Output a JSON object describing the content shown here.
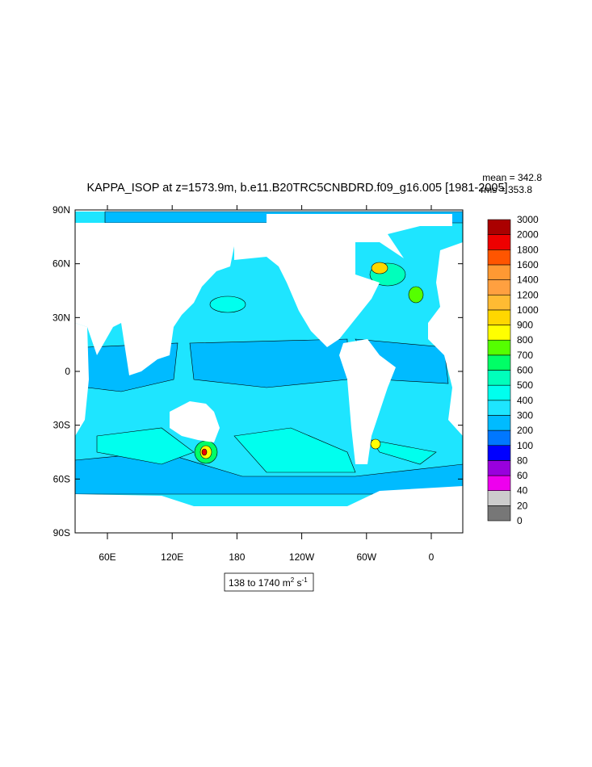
{
  "title": "KAPPA_ISOP at z=1573.9m, b.e11.B20TRC5CNBDRD.f09_g16.005 [1981-2005]",
  "stats": {
    "mean": "mean = 342.8",
    "rms": "rms = 353.8"
  },
  "map": {
    "lat_labels": [
      "90N",
      "60N",
      "30N",
      "0",
      "30S",
      "60S",
      "90S"
    ],
    "lon_labels": [
      "60E",
      "120E",
      "180",
      "120W",
      "60W",
      "0"
    ]
  },
  "colorbar": {
    "levels": [
      0,
      20,
      40,
      60,
      80,
      100,
      200,
      300,
      400,
      500,
      600,
      700,
      800,
      900,
      1000,
      1200,
      1400,
      1600,
      1800,
      2000,
      3000
    ],
    "colors": [
      "#777777",
      "#cccccc",
      "#ee00ee",
      "#9900dd",
      "#0000ff",
      "#0077ff",
      "#00bbff",
      "#1ee5ff",
      "#00ffee",
      "#00ffbb",
      "#00ff66",
      "#55ff00",
      "#ffff00",
      "#ffd700",
      "#ffbb33",
      "#ffa040",
      "#ff9933",
      "#ff5500",
      "#ee0000",
      "#aa0000"
    ]
  },
  "units": {
    "text": "138 to 1740 m",
    "sup1": "2",
    "mid": " s",
    "sup2": "-1"
  }
}
